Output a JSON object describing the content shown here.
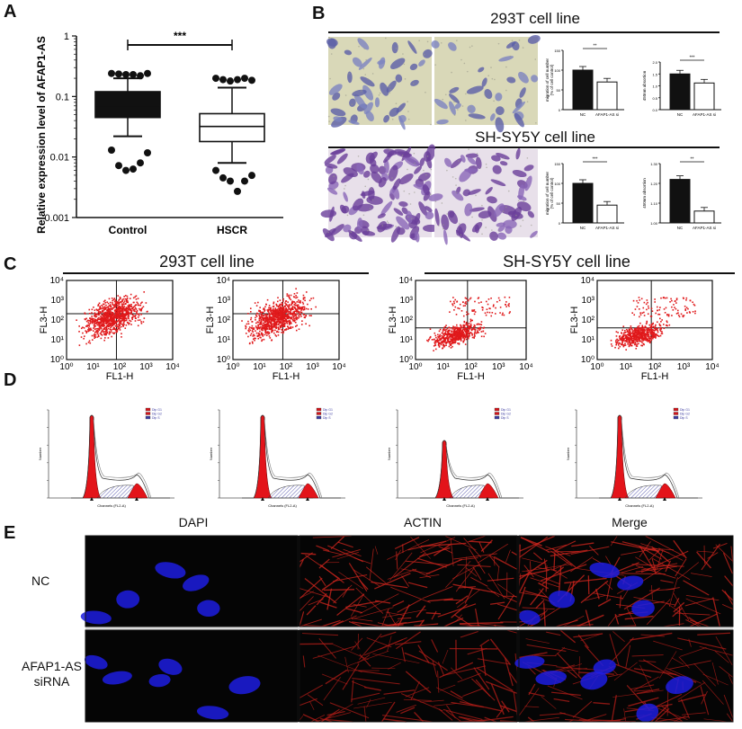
{
  "panels": {
    "A": "A",
    "B": "B",
    "C": "C",
    "D": "D",
    "E": "E"
  },
  "panel_a": {
    "ylabel": "Relative expression level of AFAP1-AS",
    "significance": "***",
    "chart_data": {
      "type": "box",
      "categories": [
        "Control",
        "HSCR"
      ],
      "yscale": "log",
      "ylim": [
        0.001,
        1
      ],
      "yticks": [
        "1",
        "0.1",
        "0.01",
        "0.001"
      ],
      "boxes": [
        {
          "name": "Control",
          "q1": 0.045,
          "median": 0.07,
          "q3": 0.12,
          "whisker_low": 0.022,
          "whisker_high": 0.2
        },
        {
          "name": "HSCR",
          "q1": 0.018,
          "median": 0.032,
          "q3": 0.052,
          "whisker_low": 0.008,
          "whisker_high": 0.14
        }
      ]
    }
  },
  "panel_b": {
    "top_title": "293T cell line",
    "bottom_title": "SH-SY5Y cell line",
    "charts": [
      {
        "type": "bar",
        "ylabel": "migration of cell number\n(% of cell control)",
        "categories": [
          "NC",
          "AFAP1-AS si"
        ],
        "values": [
          100,
          70
        ],
        "significance": "**",
        "yticks": [
          "150",
          "100",
          "50",
          "0"
        ],
        "ylim": [
          0,
          150
        ]
      },
      {
        "type": "bar",
        "ylabel": "450nm absortion",
        "categories": [
          "NC",
          "AFAP1-AS si"
        ],
        "values": [
          1.5,
          1.12
        ],
        "significance": "***",
        "yticks": [
          "2.0",
          "1.5",
          "1.0",
          "0.5",
          "0.0"
        ],
        "ylim": [
          0,
          2
        ]
      },
      {
        "type": "bar",
        "ylabel": "migration of cell number\n(% of cell control)",
        "categories": [
          "NC",
          "AFAP1-AS si"
        ],
        "values": [
          100,
          45
        ],
        "significance": "***",
        "yticks": [
          "150",
          "100",
          "50",
          "0"
        ],
        "ylim": [
          0,
          150
        ]
      },
      {
        "type": "bar",
        "ylabel": "450nm absortion",
        "categories": [
          "NC",
          "AFAP1-AS si"
        ],
        "values": [
          1.22,
          1.06
        ],
        "significance": "**",
        "yticks": [
          "1.30",
          "1.20",
          "1.10",
          "1.00"
        ],
        "ylim": [
          1.0,
          1.3
        ]
      }
    ]
  },
  "panel_c": {
    "titles": [
      "293T cell line",
      "SH-SY5Y cell line"
    ],
    "xlabel": "FL1-H",
    "ylabel": "FL3-H",
    "ticks": [
      "10⁰",
      "10¹",
      "10²",
      "10³",
      "10⁴"
    ]
  },
  "panel_d": {
    "xlabel": "Channels (FL2-A)",
    "ylabel": "Number",
    "legend": [
      "Dip G1",
      "Dip G2",
      "Dip S"
    ]
  },
  "panel_e": {
    "col_labels": [
      "DAPI",
      "ACTIN",
      "Merge"
    ],
    "row_labels": [
      "NC",
      "AFAP1-AS\nsiRNA"
    ]
  }
}
